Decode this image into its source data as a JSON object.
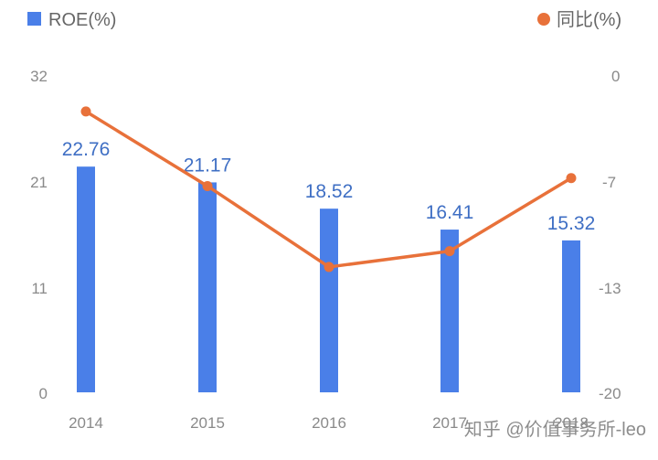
{
  "chart_data": {
    "type": "bar",
    "categories": [
      "2014",
      "2015",
      "2016",
      "2017",
      "2018"
    ],
    "series": [
      {
        "name": "ROE(%)",
        "kind": "bar",
        "axis": "left",
        "color": "#4a7fe8",
        "values": [
          22.76,
          21.17,
          18.52,
          16.41,
          15.32
        ],
        "labels": [
          "22.76",
          "21.17",
          "18.52",
          "16.41",
          "15.32"
        ]
      },
      {
        "name": "同比(%)",
        "kind": "line",
        "axis": "right",
        "color": "#e8713a",
        "values": [
          -2.3,
          -7.0,
          -12.1,
          -11.1,
          -6.5
        ]
      }
    ],
    "y_left": {
      "ylim": [
        0,
        32
      ],
      "ticks": [
        "0",
        "11",
        "21",
        "32"
      ]
    },
    "y_right": {
      "ylim": [
        -20,
        0
      ],
      "ticks": [
        "-20",
        "-13",
        "-7",
        "0"
      ]
    },
    "legend": "top",
    "grid": false
  },
  "watermark": "知乎 @价值事务所-leo"
}
